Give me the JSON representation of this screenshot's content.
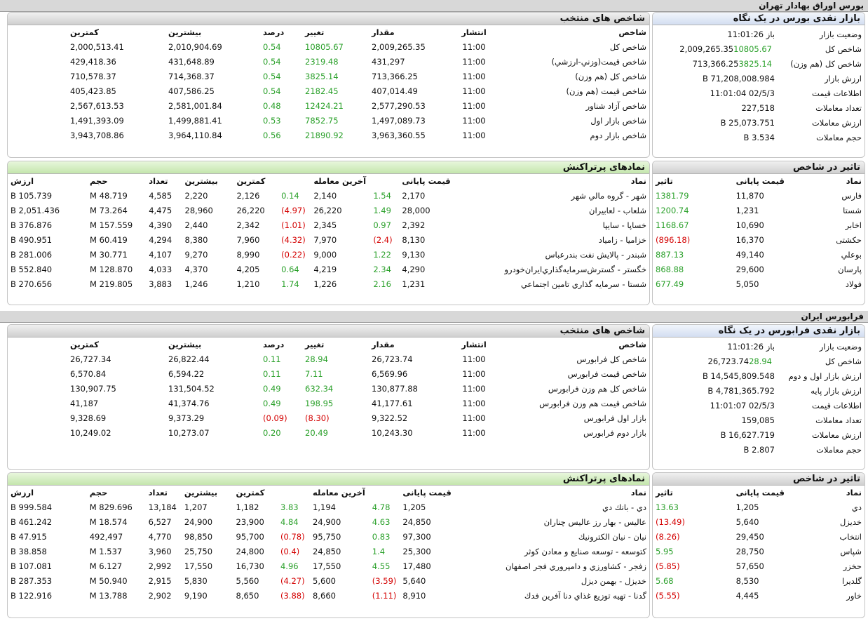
{
  "tehran": {
    "section_title": "بورس اوراق بهادار تهران",
    "glance": {
      "title": "بازار نقدی بورس در یک نگاه",
      "rows": [
        {
          "label": "وضعیت بازار",
          "value": "باز 11:01:26",
          "change": ""
        },
        {
          "label": "شاخص کل",
          "value": "2,009,265.35",
          "change": "10805.67"
        },
        {
          "label": "شاخص کل (هم وزن)",
          "value": "713,366.25",
          "change": "3825.14"
        },
        {
          "label": "ارزش بازار",
          "value": "71,208,008.984 B",
          "change": ""
        },
        {
          "label": "اطلاعات قیمت",
          "value": "02/5/3 11:01:04",
          "change": ""
        },
        {
          "label": "تعداد معاملات",
          "value": "227,518",
          "change": ""
        },
        {
          "label": "ارزش معاملات",
          "value": "25,073.751 B",
          "change": ""
        },
        {
          "label": "حجم معاملات",
          "value": "3.534 B",
          "change": ""
        }
      ]
    },
    "indices": {
      "title": "شاخص های منتخب",
      "headers": [
        "شاخص",
        "انتشار",
        "مقدار",
        "تغییر",
        "درصد",
        "بیشترین",
        "کمترین"
      ],
      "rows": [
        {
          "name": "شاخص کل",
          "time": "11:00",
          "value": "2,009,265.35",
          "change": "10805.67",
          "pct": "0.54",
          "high": "2,010,904.69",
          "low": "2,000,513.41"
        },
        {
          "name": "شاخص قيمت(وزني-ارزشي)",
          "time": "11:00",
          "value": "431,297",
          "change": "2319.48",
          "pct": "0.54",
          "high": "431,648.89",
          "low": "429,418.36"
        },
        {
          "name": "شاخص کل (هم وزن)",
          "time": "11:00",
          "value": "713,366.25",
          "change": "3825.14",
          "pct": "0.54",
          "high": "714,368.37",
          "low": "710,578.37"
        },
        {
          "name": "شاخص قیمت (هم وزن)",
          "time": "11:00",
          "value": "407,014.49",
          "change": "2182.45",
          "pct": "0.54",
          "high": "407,586.25",
          "low": "405,423.85"
        },
        {
          "name": "شاخص آزاد شناور",
          "time": "11:00",
          "value": "2,577,290.53",
          "change": "12424.21",
          "pct": "0.48",
          "high": "2,581,001.84",
          "low": "2,567,613.53"
        },
        {
          "name": "شاخص بازار اول",
          "time": "11:00",
          "value": "1,497,089.73",
          "change": "7852.75",
          "pct": "0.53",
          "high": "1,499,881.41",
          "low": "1,491,393.09"
        },
        {
          "name": "شاخص بازار دوم",
          "time": "11:00",
          "value": "3,963,360.55",
          "change": "21890.92",
          "pct": "0.56",
          "high": "3,964,110.84",
          "low": "3,943,708.86"
        }
      ]
    },
    "impact": {
      "title": "تاثیر در شاخص",
      "headers": [
        "نماد",
        "قیمت پایانی",
        "تاثیر"
      ],
      "rows": [
        {
          "symbol": "فارس",
          "price": "11,870",
          "impact": "1381.79",
          "neg": false
        },
        {
          "symbol": "شستا",
          "price": "1,231",
          "impact": "1200.74",
          "neg": false
        },
        {
          "symbol": "اخابر",
          "price": "10,690",
          "impact": "1168.67",
          "neg": false
        },
        {
          "symbol": "حکشتی",
          "price": "16,370",
          "impact": "(896.18)",
          "neg": true
        },
        {
          "symbol": "بوعلي",
          "price": "49,140",
          "impact": "887.13",
          "neg": false
        },
        {
          "symbol": "پارسان",
          "price": "29,600",
          "impact": "868.88",
          "neg": false
        },
        {
          "symbol": "فولاد",
          "price": "5,050",
          "impact": "677.49",
          "neg": false
        }
      ]
    },
    "active": {
      "title": "نمادهای پرتراکنش",
      "headers": [
        "نماد",
        "قیمت پایانی",
        "",
        "آخرین معامله",
        "",
        "کمترین",
        "بیشترین",
        "تعداد",
        "حجم",
        "ارزش"
      ],
      "rows": [
        {
          "name": "شهر - گروه مالي شهر",
          "close": "2,170",
          "close_pct": "1.54",
          "close_neg": false,
          "last": "2,140",
          "last_pct": "0.14",
          "last_neg": false,
          "low": "2,126",
          "high": "2,220",
          "count": "4,585",
          "volume": "48.719 M",
          "value": "105.739 B"
        },
        {
          "name": "شلعاب - لعابيران",
          "close": "28,000",
          "close_pct": "1.49",
          "close_neg": false,
          "last": "26,220",
          "last_pct": "(4.97)",
          "last_neg": true,
          "low": "26,220",
          "high": "28,960",
          "count": "4,475",
          "volume": "73.264 M",
          "value": "2,051.436 B"
        },
        {
          "name": "خساپا - سايپا",
          "close": "2,392",
          "close_pct": "0.97",
          "close_neg": false,
          "last": "2,345",
          "last_pct": "(1.01)",
          "last_neg": true,
          "low": "2,342",
          "high": "2,440",
          "count": "4,390",
          "volume": "157.559 M",
          "value": "376.876 B"
        },
        {
          "name": "خزاميا - زامياد",
          "close": "8,130",
          "close_pct": "(2.4)",
          "close_neg": true,
          "last": "7,970",
          "last_pct": "(4.32)",
          "last_neg": true,
          "low": "7,960",
          "high": "8,380",
          "count": "4,294",
          "volume": "60.419 M",
          "value": "490.951 B"
        },
        {
          "name": "شبندر - پالايش نفت بندرعباس",
          "close": "9,130",
          "close_pct": "1.22",
          "close_neg": false,
          "last": "9,000",
          "last_pct": "(0.22)",
          "last_neg": true,
          "low": "8,990",
          "high": "9,270",
          "count": "4,107",
          "volume": "30.771 M",
          "value": "281.006 B"
        },
        {
          "name": "خگستر - گسترش‌سرمايه‌گذاري‌ايران‌خودرو",
          "close": "4,290",
          "close_pct": "2.34",
          "close_neg": false,
          "last": "4,219",
          "last_pct": "0.64",
          "last_neg": false,
          "low": "4,205",
          "high": "4,370",
          "count": "4,033",
          "volume": "128.870 M",
          "value": "552.840 B"
        },
        {
          "name": "شستا - سرمايه گذاري تامين اجتماعي",
          "close": "1,231",
          "close_pct": "2.16",
          "close_neg": false,
          "last": "1,226",
          "last_pct": "1.74",
          "last_neg": false,
          "low": "1,210",
          "high": "1,246",
          "count": "3,883",
          "volume": "219.805 M",
          "value": "270.656 B"
        }
      ]
    }
  },
  "farabourse": {
    "section_title": "فرابورس ایران",
    "glance": {
      "title": "بازار نقدی فرابورس در یک نگاه",
      "rows": [
        {
          "label": "وضعیت بازار",
          "value": "باز 11:01:26",
          "change": ""
        },
        {
          "label": "شاخص کل",
          "value": "26,723.74",
          "change": "28.94"
        },
        {
          "label": "ارزش بازار اول و دوم",
          "value": "14,545,809.548 B",
          "change": ""
        },
        {
          "label": "ارزش بازار پایه",
          "value": "4,781,365.792 B",
          "change": ""
        },
        {
          "label": "اطلاعات قیمت",
          "value": "02/5/3 11:01:07",
          "change": ""
        },
        {
          "label": "تعداد معاملات",
          "value": "159,085",
          "change": ""
        },
        {
          "label": "ارزش معاملات",
          "value": "16,627.719 B",
          "change": ""
        },
        {
          "label": "حجم معاملات",
          "value": "2.807 B",
          "change": ""
        }
      ]
    },
    "indices": {
      "title": "شاخص های منتخب",
      "headers": [
        "شاخص",
        "انتشار",
        "مقدار",
        "تغییر",
        "درصد",
        "بیشترین",
        "کمترین"
      ],
      "rows": [
        {
          "name": "شاخص کل فرابورس",
          "time": "11:00",
          "value": "26,723.74",
          "change": "28.94",
          "pct": "0.11",
          "high": "26,822.44",
          "low": "26,727.34",
          "neg": false
        },
        {
          "name": "شاخص قیمت فرابورس",
          "time": "11:00",
          "value": "6,569.96",
          "change": "7.11",
          "pct": "0.11",
          "high": "6,594.22",
          "low": "6,570.84",
          "neg": false
        },
        {
          "name": "شاخص کل هم وزن فرابورس",
          "time": "11:00",
          "value": "130,877.88",
          "change": "632.34",
          "pct": "0.49",
          "high": "131,504.52",
          "low": "130,907.75",
          "neg": false
        },
        {
          "name": "شاخص قیمت هم وزن فرابورس",
          "time": "11:00",
          "value": "41,177.61",
          "change": "198.95",
          "pct": "0.49",
          "high": "41,374.76",
          "low": "41,187",
          "neg": false
        },
        {
          "name": "بازار اول فرابورس",
          "time": "11:00",
          "value": "9,322.52",
          "change": "(8.30)",
          "pct": "(0.09)",
          "high": "9,373.29",
          "low": "9,328.69",
          "neg": true
        },
        {
          "name": "بازار دوم فرابورس",
          "time": "11:00",
          "value": "10,243.30",
          "change": "20.49",
          "pct": "0.20",
          "high": "10,273.07",
          "low": "10,249.02",
          "neg": false
        }
      ]
    },
    "impact": {
      "title": "تاثیر در شاخص",
      "headers": [
        "نماد",
        "قیمت پایانی",
        "تاثیر"
      ],
      "rows": [
        {
          "symbol": "دي",
          "price": "1,205",
          "impact": "13.63",
          "neg": false
        },
        {
          "symbol": "خديزل",
          "price": "5,640",
          "impact": "(13.49)",
          "neg": true
        },
        {
          "symbol": "انتخاب",
          "price": "29,450",
          "impact": "(8.26)",
          "neg": true
        },
        {
          "symbol": "شپاس",
          "price": "28,750",
          "impact": "5.95",
          "neg": false
        },
        {
          "symbol": "حخزر",
          "price": "57,650",
          "impact": "(5.85)",
          "neg": true
        },
        {
          "symbol": "گلديرا",
          "price": "8,530",
          "impact": "5.68",
          "neg": false
        },
        {
          "symbol": "خاور",
          "price": "4,445",
          "impact": "(5.55)",
          "neg": true
        }
      ]
    },
    "active": {
      "title": "نمادهای پرتراکنش",
      "headers": [
        "نماد",
        "قیمت پایانی",
        "",
        "آخرین معامله",
        "",
        "کمترین",
        "بیشترین",
        "تعداد",
        "حجم",
        "ارزش"
      ],
      "rows": [
        {
          "name": "دي - بانك دي",
          "close": "1,205",
          "close_pct": "4.78",
          "close_neg": false,
          "last": "1,194",
          "last_pct": "3.83",
          "last_neg": false,
          "low": "1,182",
          "high": "1,207",
          "count": "13,184",
          "volume": "829.696 M",
          "value": "999.584 B"
        },
        {
          "name": "عاليس - بهار رز عاليس چناران",
          "close": "24,850",
          "close_pct": "4.63",
          "close_neg": false,
          "last": "24,900",
          "last_pct": "4.84",
          "last_neg": false,
          "low": "23,900",
          "high": "24,900",
          "count": "6,527",
          "volume": "18.574 M",
          "value": "461.242 B"
        },
        {
          "name": "نيان - نيان الكترونيك",
          "close": "97,300",
          "close_pct": "0.83",
          "close_neg": false,
          "last": "95,750",
          "last_pct": "(0.78)",
          "last_neg": true,
          "low": "95,700",
          "high": "98,850",
          "count": "4,770",
          "volume": "492,497",
          "value": "47.915 B"
        },
        {
          "name": "کتوسعه - توسعه صنايع و معادن كوثر",
          "close": "25,300",
          "close_pct": "1.4",
          "close_neg": false,
          "last": "24,850",
          "last_pct": "(0.4)",
          "last_neg": true,
          "low": "24,800",
          "high": "25,750",
          "count": "3,960",
          "volume": "1.537 M",
          "value": "38.858 B"
        },
        {
          "name": "زفجر - كشاورزي و دامپروري فجر اصفهان",
          "close": "17,480",
          "close_pct": "4.55",
          "close_neg": false,
          "last": "17,550",
          "last_pct": "4.96",
          "last_neg": false,
          "low": "16,730",
          "high": "17,550",
          "count": "2,992",
          "volume": "6.127 M",
          "value": "107.081 B"
        },
        {
          "name": "خديزل - بهمن ديزل",
          "close": "5,640",
          "close_pct": "(3.59)",
          "close_neg": true,
          "last": "5,600",
          "last_pct": "(4.27)",
          "last_neg": true,
          "low": "5,560",
          "high": "5,830",
          "count": "2,915",
          "volume": "50.940 M",
          "value": "287.353 B"
        },
        {
          "name": "گدنا - تهيه توزيع غذاي دنا آفرين فدك",
          "close": "8,910",
          "close_pct": "(1.11)",
          "close_neg": true,
          "last": "8,660",
          "last_pct": "(3.88)",
          "last_neg": true,
          "low": "8,650",
          "high": "9,190",
          "count": "2,902",
          "volume": "13.788 M",
          "value": "122.916 B"
        }
      ]
    }
  }
}
